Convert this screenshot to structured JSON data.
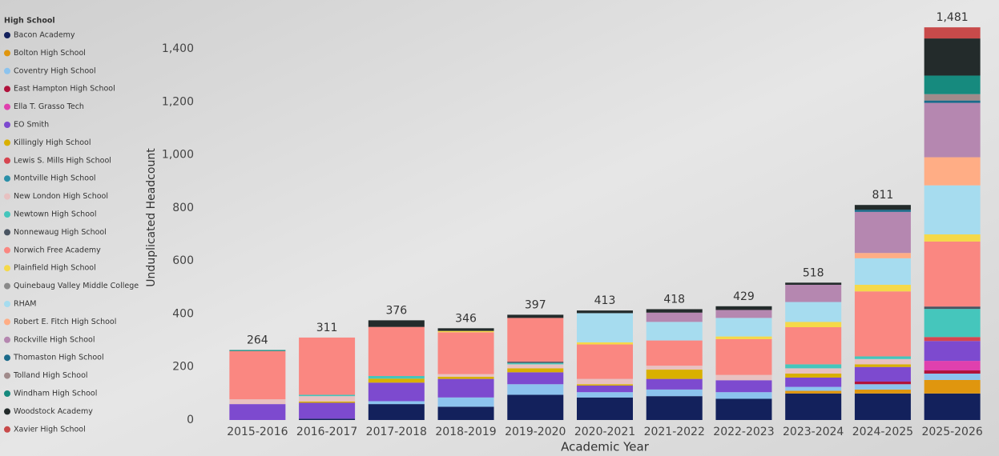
{
  "chart_data": {
    "type": "stacked_bar",
    "legend_title": "High School",
    "x_label": "Academic Year",
    "y_label": "Unduplicated Headcount",
    "categories": [
      "2015-2016",
      "2016-2017",
      "2017-2018",
      "2018-2019",
      "2019-2020",
      "2020-2021",
      "2021-2022",
      "2022-2023",
      "2023-2024",
      "2024-2025",
      "2025-2026"
    ],
    "totals": [
      264,
      311,
      376,
      346,
      397,
      413,
      418,
      429,
      518,
      811,
      1481
    ],
    "total_labels": [
      "264",
      "311",
      "376",
      "346",
      "397",
      "413",
      "418",
      "429",
      "518",
      "811",
      "1,481"
    ],
    "ylim": [
      0,
      1500
    ],
    "yticks": [
      0,
      200,
      400,
      600,
      800,
      {
        "value": 1000,
        "label": "1,000"
      },
      {
        "value": 1200,
        "label": "1,200"
      },
      {
        "value": 1400,
        "label": "1,400"
      }
    ],
    "grid": false,
    "legend_position": "left",
    "series": [
      {
        "name": "Bacon Academy",
        "color": "#13215c",
        "values": [
          null,
          5,
          60,
          50,
          95,
          85,
          90,
          80,
          100,
          100,
          100
        ]
      },
      {
        "name": "Bolton High School",
        "color": "#e0960e",
        "values": [
          null,
          null,
          null,
          null,
          null,
          null,
          null,
          null,
          10,
          15,
          51
        ]
      },
      {
        "name": "Coventry High School",
        "color": "#8cc3ee",
        "values": [
          null,
          null,
          11,
          35,
          40,
          20,
          25,
          25,
          15,
          20,
          24
        ]
      },
      {
        "name": "East Hampton High School",
        "color": "#b0123b",
        "values": [
          null,
          null,
          null,
          null,
          null,
          null,
          null,
          null,
          null,
          10,
          12
        ]
      },
      {
        "name": "Ella T. Grasso Tech",
        "color": "#e040ae",
        "values": [
          null,
          null,
          null,
          null,
          null,
          null,
          null,
          null,
          null,
          null,
          36
        ]
      },
      {
        "name": "EO Smith",
        "color": "#7d4acf",
        "values": [
          60,
          60,
          70,
          70,
          45,
          25,
          40,
          45,
          35,
          55,
          75
        ]
      },
      {
        "name": "Killingly High School",
        "color": "#d9b000",
        "values": [
          null,
          5,
          15,
          8,
          15,
          5,
          35,
          null,
          15,
          10,
          null
        ]
      },
      {
        "name": "Lewis S. Mills High School",
        "color": "#d64550",
        "values": [
          null,
          null,
          null,
          null,
          null,
          null,
          null,
          null,
          null,
          null,
          15
        ]
      },
      {
        "name": "Montville High School",
        "color": "#2a8fa8",
        "values": [
          null,
          null,
          null,
          null,
          null,
          null,
          null,
          null,
          null,
          null,
          null
        ]
      },
      {
        "name": "New London High School",
        "color": "#e8c1c1",
        "values": [
          18,
          20,
          null,
          10,
          15,
          20,
          15,
          20,
          20,
          20,
          null
        ]
      },
      {
        "name": "Newtown High School",
        "color": "#45c6bc",
        "values": [
          null,
          5,
          10,
          null,
          5,
          null,
          null,
          null,
          15,
          10,
          106
        ]
      },
      {
        "name": "Nonnewaug High School",
        "color": "#4a5562",
        "values": [
          null,
          null,
          null,
          null,
          5,
          null,
          null,
          null,
          null,
          null,
          9
        ]
      },
      {
        "name": "Norwich Free Academy",
        "color": "#fa8781",
        "values": [
          182,
          216,
          185,
          158,
          165,
          130,
          95,
          135,
          140,
          245,
          245
        ]
      },
      {
        "name": "Plainfield High School",
        "color": "#f5d949",
        "values": [
          null,
          null,
          null,
          5,
          null,
          8,
          null,
          10,
          20,
          25,
          27
        ]
      },
      {
        "name": "Quinebaug Valley Middle College",
        "color": "#8a8a8a",
        "values": [
          null,
          null,
          null,
          null,
          null,
          null,
          null,
          null,
          null,
          null,
          null
        ]
      },
      {
        "name": "RHAM",
        "color": "#a6dcef",
        "values": [
          null,
          null,
          null,
          null,
          null,
          110,
          70,
          70,
          75,
          100,
          185
        ]
      },
      {
        "name": "Robert E. Fitch High School",
        "color": "#ffad85",
        "values": [
          null,
          null,
          null,
          null,
          null,
          null,
          null,
          null,
          null,
          20,
          106
        ]
      },
      {
        "name": "Rockville High School",
        "color": "#b587b0",
        "values": [
          null,
          null,
          null,
          null,
          null,
          null,
          35,
          30,
          65,
          155,
          205
        ]
      },
      {
        "name": "Thomaston High School",
        "color": "#1a6a8a",
        "values": [
          null,
          null,
          null,
          null,
          null,
          null,
          null,
          null,
          null,
          8,
          9
        ]
      },
      {
        "name": "Tolland High School",
        "color": "#a08b8b",
        "values": [
          null,
          null,
          null,
          null,
          null,
          null,
          null,
          null,
          null,
          null,
          24
        ]
      },
      {
        "name": "Windham High School",
        "color": "#168a7e",
        "values": [
          4,
          null,
          null,
          null,
          null,
          null,
          null,
          null,
          null,
          null,
          70
        ]
      },
      {
        "name": "Woodstock Academy",
        "color": "#232b2b",
        "values": [
          null,
          null,
          25,
          10,
          12,
          10,
          13,
          14,
          8,
          18,
          140
        ]
      },
      {
        "name": "Xavier High School",
        "color": "#c84a4a",
        "values": [
          null,
          null,
          null,
          null,
          null,
          null,
          null,
          null,
          null,
          null,
          42
        ]
      }
    ]
  }
}
